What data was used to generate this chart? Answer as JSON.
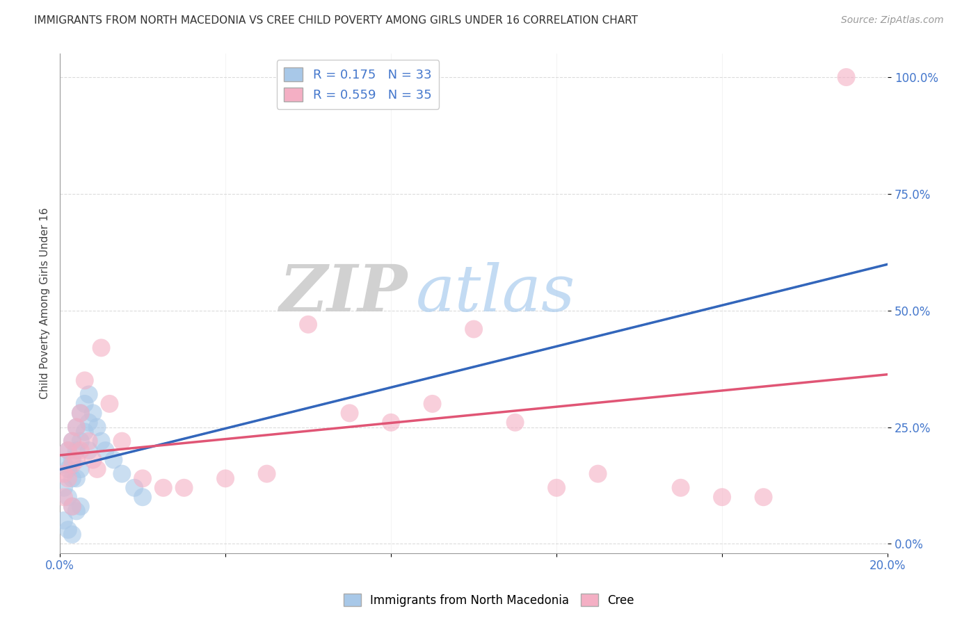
{
  "title": "IMMIGRANTS FROM NORTH MACEDONIA VS CREE CHILD POVERTY AMONG GIRLS UNDER 16 CORRELATION CHART",
  "source": "Source: ZipAtlas.com",
  "ylabel": "Child Poverty Among Girls Under 16",
  "xlabel": "",
  "xlim": [
    0.0,
    0.2
  ],
  "ylim": [
    -0.02,
    1.05
  ],
  "ytick_positions": [
    0.0,
    0.25,
    0.5,
    0.75,
    1.0
  ],
  "ytick_labels": [
    "0.0%",
    "25.0%",
    "50.0%",
    "75.0%",
    "100.0%"
  ],
  "xtick_positions": [
    0.0,
    0.04,
    0.08,
    0.12,
    0.16,
    0.2
  ],
  "xtick_labels": [
    "0.0%",
    "",
    "",
    "",
    "",
    "20.0%"
  ],
  "legend_r_blue": "0.175",
  "legend_n_blue": "33",
  "legend_r_pink": "0.559",
  "legend_n_pink": "35",
  "blue_color": "#a8c8e8",
  "pink_color": "#f4afc4",
  "trendline_blue_color": "#3366bb",
  "trendline_blue_dash_color": "#88bbdd",
  "trendline_pink_color": "#e05575",
  "watermark_zip": "ZIP",
  "watermark_atlas": "atlas",
  "background_color": "#ffffff",
  "blue_scatter_x": [
    0.001,
    0.001,
    0.001,
    0.002,
    0.002,
    0.002,
    0.002,
    0.003,
    0.003,
    0.003,
    0.003,
    0.003,
    0.004,
    0.004,
    0.004,
    0.004,
    0.005,
    0.005,
    0.005,
    0.005,
    0.006,
    0.006,
    0.007,
    0.007,
    0.007,
    0.008,
    0.009,
    0.01,
    0.011,
    0.013,
    0.015,
    0.018,
    0.02
  ],
  "blue_scatter_y": [
    0.17,
    0.12,
    0.05,
    0.2,
    0.16,
    0.1,
    0.03,
    0.22,
    0.18,
    0.14,
    0.08,
    0.02,
    0.25,
    0.2,
    0.14,
    0.07,
    0.28,
    0.22,
    0.16,
    0.08,
    0.3,
    0.24,
    0.32,
    0.26,
    0.2,
    0.28,
    0.25,
    0.22,
    0.2,
    0.18,
    0.15,
    0.12,
    0.1
  ],
  "pink_scatter_x": [
    0.001,
    0.001,
    0.002,
    0.002,
    0.003,
    0.003,
    0.003,
    0.004,
    0.004,
    0.005,
    0.005,
    0.006,
    0.007,
    0.008,
    0.009,
    0.01,
    0.012,
    0.015,
    0.02,
    0.025,
    0.03,
    0.04,
    0.05,
    0.06,
    0.07,
    0.08,
    0.09,
    0.1,
    0.11,
    0.12,
    0.13,
    0.15,
    0.16,
    0.17,
    0.19
  ],
  "pink_scatter_y": [
    0.15,
    0.1,
    0.2,
    0.14,
    0.22,
    0.17,
    0.08,
    0.25,
    0.18,
    0.28,
    0.2,
    0.35,
    0.22,
    0.18,
    0.16,
    0.42,
    0.3,
    0.22,
    0.14,
    0.12,
    0.12,
    0.14,
    0.15,
    0.47,
    0.28,
    0.26,
    0.3,
    0.46,
    0.26,
    0.12,
    0.15,
    0.12,
    0.1,
    0.1,
    1.0
  ]
}
